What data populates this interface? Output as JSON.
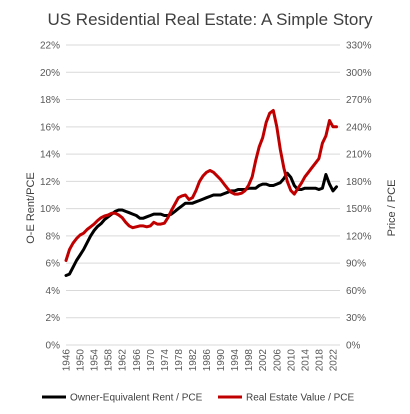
{
  "chart_data": {
    "type": "line",
    "title": "US Residential Real Estate: A Simple Story",
    "ylabel_left": "O-E Rent/PCE",
    "ylabel_right": "Price / PCE",
    "ylim_left": [
      0,
      22
    ],
    "ylim_right": [
      0,
      330
    ],
    "yticks_left": [
      "0%",
      "2%",
      "4%",
      "6%",
      "8%",
      "10%",
      "12%",
      "14%",
      "16%",
      "18%",
      "20%",
      "22%"
    ],
    "yticks_right": [
      "0%",
      "30%",
      "60%",
      "90%",
      "120%",
      "150%",
      "180%",
      "210%",
      "240%",
      "270%",
      "300%",
      "330%"
    ],
    "xlim": [
      1946,
      2024
    ],
    "xticks": [
      "1946",
      "1950",
      "1954",
      "1958",
      "1962",
      "1966",
      "1970",
      "1974",
      "1978",
      "1982",
      "1986",
      "1990",
      "1994",
      "1998",
      "2002",
      "2006",
      "2010",
      "2014",
      "2018",
      "2022"
    ],
    "grid": true,
    "legend_position": "bottom",
    "series": [
      {
        "name": "Owner-Equivalent Rent / PCE",
        "axis": "left",
        "color": "#000000",
        "x": [
          1946,
          1947,
          1948,
          1949,
          1950,
          1951,
          1952,
          1953,
          1954,
          1955,
          1956,
          1957,
          1958,
          1959,
          1960,
          1961,
          1962,
          1963,
          1964,
          1965,
          1966,
          1967,
          1968,
          1969,
          1970,
          1971,
          1972,
          1973,
          1974,
          1975,
          1976,
          1977,
          1978,
          1979,
          1980,
          1981,
          1982,
          1983,
          1984,
          1985,
          1986,
          1987,
          1988,
          1989,
          1990,
          1991,
          1992,
          1993,
          1994,
          1995,
          1996,
          1997,
          1998,
          1999,
          2000,
          2001,
          2002,
          2003,
          2004,
          2005,
          2006,
          2007,
          2008,
          2009,
          2010,
          2011,
          2012,
          2013,
          2014,
          2015,
          2016,
          2017,
          2018,
          2019,
          2020,
          2021,
          2022,
          2023
        ],
        "values": [
          5.1,
          5.2,
          5.7,
          6.2,
          6.6,
          7.0,
          7.5,
          8.0,
          8.4,
          8.7,
          8.9,
          9.2,
          9.4,
          9.6,
          9.8,
          9.9,
          9.9,
          9.8,
          9.7,
          9.6,
          9.5,
          9.3,
          9.3,
          9.4,
          9.5,
          9.6,
          9.6,
          9.6,
          9.5,
          9.5,
          9.6,
          9.8,
          10.0,
          10.2,
          10.4,
          10.4,
          10.4,
          10.5,
          10.6,
          10.7,
          10.8,
          10.9,
          11.0,
          11.0,
          11.0,
          11.1,
          11.2,
          11.3,
          11.3,
          11.4,
          11.4,
          11.4,
          11.5,
          11.5,
          11.5,
          11.7,
          11.8,
          11.8,
          11.7,
          11.7,
          11.8,
          11.9,
          12.2,
          12.6,
          12.3,
          11.7,
          11.4,
          11.4,
          11.5,
          11.5,
          11.5,
          11.5,
          11.4,
          11.5,
          12.5,
          11.8,
          11.3,
          11.6
        ]
      },
      {
        "name": "Real Estate Value / PCE",
        "axis": "right",
        "color": "#c00000",
        "x": [
          1946,
          1947,
          1948,
          1949,
          1950,
          1951,
          1952,
          1953,
          1954,
          1955,
          1956,
          1957,
          1958,
          1959,
          1960,
          1961,
          1962,
          1963,
          1964,
          1965,
          1966,
          1967,
          1968,
          1969,
          1970,
          1971,
          1972,
          1973,
          1974,
          1975,
          1976,
          1977,
          1978,
          1979,
          1980,
          1981,
          1982,
          1983,
          1984,
          1985,
          1986,
          1987,
          1988,
          1989,
          1990,
          1991,
          1992,
          1993,
          1994,
          1995,
          1996,
          1997,
          1998,
          1999,
          2000,
          2001,
          2002,
          2003,
          2004,
          2005,
          2006,
          2007,
          2008,
          2009,
          2010,
          2011,
          2012,
          2013,
          2014,
          2015,
          2016,
          2017,
          2018,
          2019,
          2020,
          2021,
          2022,
          2023
        ],
        "values": [
          93,
          105,
          112,
          117,
          121,
          123,
          127,
          130,
          133,
          137,
          140,
          142,
          143,
          145,
          145,
          143,
          140,
          135,
          131,
          129,
          130,
          131,
          131,
          130,
          131,
          135,
          133,
          133,
          134,
          140,
          148,
          155,
          162,
          164,
          165,
          160,
          162,
          170,
          180,
          186,
          190,
          192,
          190,
          186,
          182,
          177,
          172,
          168,
          166,
          166,
          167,
          170,
          176,
          185,
          203,
          218,
          228,
          245,
          255,
          258,
          240,
          215,
          195,
          180,
          170,
          166,
          172,
          178,
          185,
          190,
          195,
          200,
          205,
          222,
          230,
          247,
          240,
          240
        ]
      }
    ]
  }
}
